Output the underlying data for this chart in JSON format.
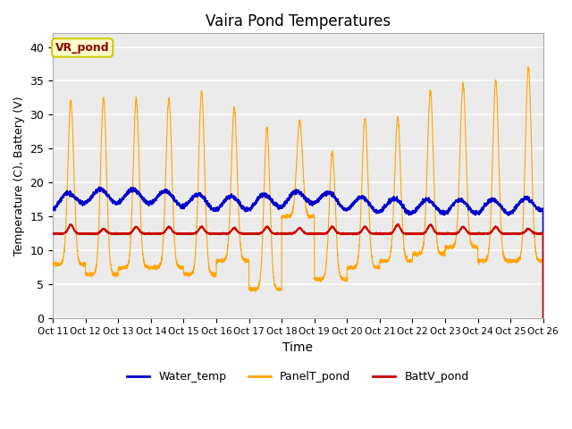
{
  "title": "Vaira Pond Temperatures",
  "xlabel": "Time",
  "ylabel": "Temperature (C), Battery (V)",
  "ylim": [
    0,
    42
  ],
  "yticks": [
    0,
    5,
    10,
    15,
    20,
    25,
    30,
    35,
    40
  ],
  "annotation": "VR_pond",
  "bg_color": "#ebebeb",
  "grid_color": "white",
  "water_color": "#0000cc",
  "panel_color": "#ffa500",
  "batt_color": "#cc0000",
  "xtick_labels": [
    "Oct 11",
    "Oct 12",
    "Oct 13",
    "Oct 14",
    "Oct 15",
    "Oct 16",
    "Oct 17",
    "Oct 18",
    "Oct 19",
    "Oct 20",
    "Oct 21",
    "Oct 22",
    "Oct 23",
    "Oct 24",
    "Oct 25",
    "Oct 26"
  ],
  "n_days": 15,
  "panel_peaks": [
    32.0,
    32.5,
    32.3,
    32.3,
    33.5,
    31.0,
    28.0,
    29.0,
    24.5,
    29.5,
    29.5,
    33.5,
    34.5,
    35.0,
    37.0
  ],
  "panel_mins": [
    8.0,
    6.5,
    7.5,
    7.5,
    6.5,
    8.5,
    4.3,
    15.0,
    5.8,
    7.5,
    8.5,
    9.5,
    10.5,
    8.5,
    8.5
  ],
  "panel_peak_widths": [
    0.09,
    0.09,
    0.09,
    0.09,
    0.09,
    0.09,
    0.09,
    0.09,
    0.09,
    0.09,
    0.09,
    0.09,
    0.09,
    0.09,
    0.09
  ],
  "water_vals": [
    17.0,
    18.0,
    18.0,
    18.0,
    17.5,
    17.0,
    17.0,
    17.5,
    18.0,
    17.0,
    16.7,
    16.5,
    16.5,
    16.5,
    16.5,
    17.0
  ],
  "batt_base": 12.5,
  "batt_peak": 13.8
}
